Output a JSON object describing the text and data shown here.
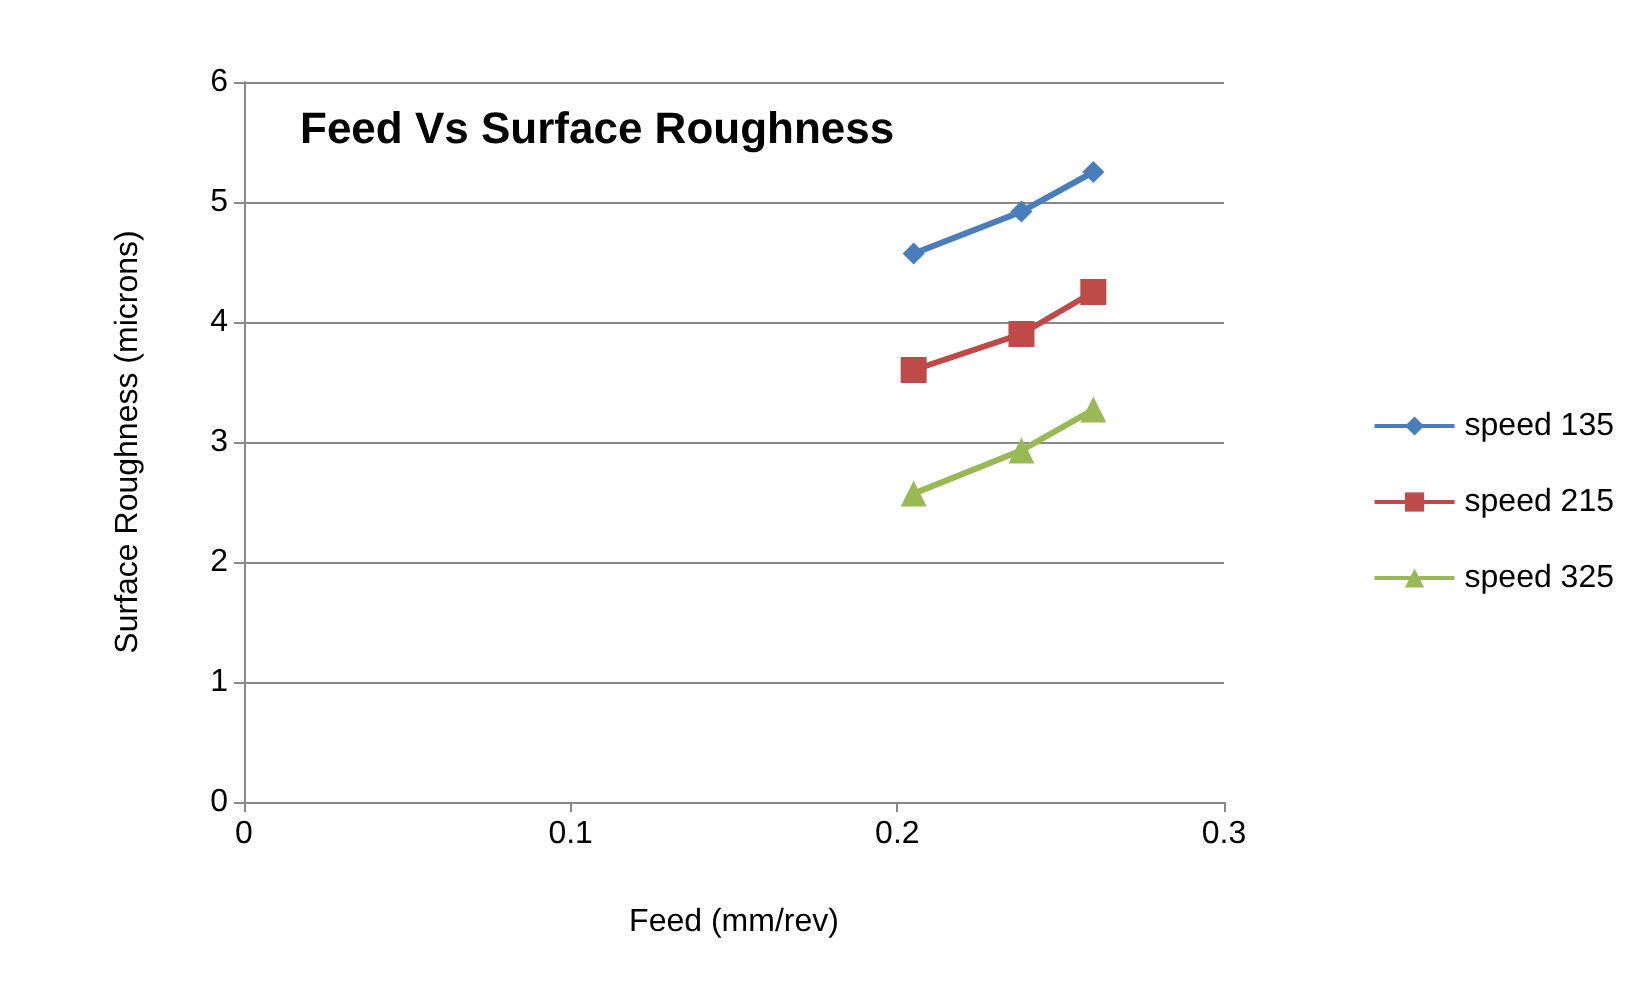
{
  "chart_data": {
    "type": "line",
    "title": "Feed Vs Surface Roughness",
    "xlabel": "Feed (mm/rev)",
    "ylabel": "Surface Roughness (microns)",
    "xlim": [
      0,
      0.3
    ],
    "xticks": [
      0,
      0.1,
      0.2,
      0.3
    ],
    "ylim": [
      0,
      6
    ],
    "yticks": [
      0,
      1,
      2,
      3,
      4,
      5,
      6
    ],
    "grid": "y",
    "legend": "right",
    "series": [
      {
        "name": "speed 135",
        "color": "#4a7ebb",
        "marker": "diamond",
        "x": [
          0.205,
          0.238,
          0.26
        ],
        "values": [
          4.57,
          4.92,
          5.25
        ]
      },
      {
        "name": "speed 215",
        "color": "#be4b48",
        "marker": "square",
        "x": [
          0.205,
          0.238,
          0.26
        ],
        "values": [
          3.6,
          3.9,
          4.25
        ]
      },
      {
        "name": "speed 325",
        "color": "#98b954",
        "marker": "triangle",
        "x": [
          0.205,
          0.238,
          0.26
        ],
        "values": [
          2.57,
          2.93,
          3.27
        ]
      }
    ]
  }
}
